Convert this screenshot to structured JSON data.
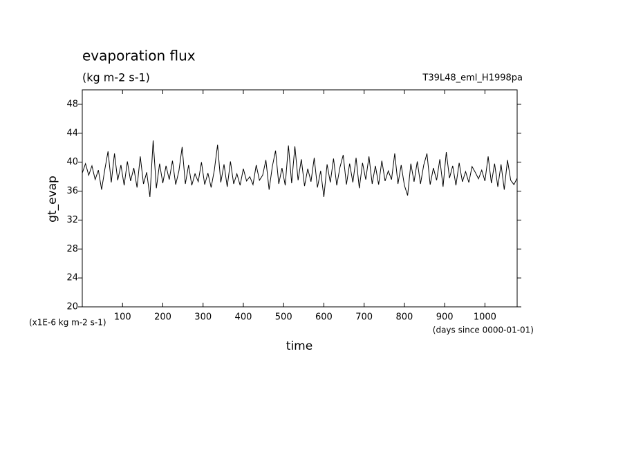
{
  "chart_data": {
    "type": "line",
    "title": "evaporation flux",
    "subtitle": "(kg m-2 s-1)",
    "run_label": "T39L48_eml_H1998pa",
    "ylabel": "gt_evap",
    "xlabel": "time",
    "y_unit_note": "(x1E-6 kg m-2 s-1)",
    "x_unit_note": "(days since 0000-01-01)",
    "xlim": [
      0,
      1080
    ],
    "xticks": [
      100,
      200,
      300,
      400,
      500,
      600,
      700,
      800,
      900,
      1000
    ],
    "ylim": [
      20,
      50
    ],
    "yticks": [
      20,
      24,
      28,
      32,
      36,
      40,
      44,
      48
    ],
    "grid": false,
    "series": [
      {
        "name": "gt_evap",
        "color": "#000000",
        "x": [
          0,
          8,
          16,
          24,
          32,
          40,
          48,
          56,
          64,
          72,
          80,
          88,
          96,
          104,
          112,
          120,
          128,
          136,
          144,
          152,
          160,
          168,
          176,
          184,
          192,
          200,
          208,
          216,
          224,
          232,
          240,
          248,
          256,
          264,
          272,
          280,
          288,
          296,
          304,
          312,
          320,
          328,
          336,
          344,
          352,
          360,
          368,
          376,
          384,
          392,
          400,
          408,
          416,
          424,
          432,
          440,
          448,
          456,
          464,
          472,
          480,
          488,
          496,
          504,
          512,
          520,
          528,
          536,
          544,
          552,
          560,
          568,
          576,
          584,
          592,
          600,
          608,
          616,
          624,
          632,
          640,
          648,
          656,
          664,
          672,
          680,
          688,
          696,
          704,
          712,
          720,
          728,
          736,
          744,
          752,
          760,
          768,
          776,
          784,
          792,
          800,
          808,
          816,
          824,
          832,
          840,
          848,
          856,
          864,
          872,
          880,
          888,
          896,
          904,
          912,
          920,
          928,
          936,
          944,
          952,
          960,
          968,
          976,
          984,
          992,
          1000,
          1008,
          1016,
          1024,
          1032,
          1040,
          1048,
          1056,
          1064,
          1072,
          1080
        ],
        "values": [
          38.5,
          39.8,
          38.2,
          39.5,
          37.6,
          38.9,
          36.2,
          39.0,
          41.5,
          37.2,
          41.2,
          37.5,
          39.6,
          36.8,
          40.1,
          37.4,
          39.2,
          36.5,
          40.8,
          37.0,
          38.6,
          35.2,
          43.0,
          36.4,
          39.8,
          37.1,
          39.5,
          37.6,
          40.2,
          36.9,
          38.8,
          42.1,
          37.0,
          39.6,
          36.8,
          38.4,
          37.3,
          40.0,
          36.9,
          38.5,
          36.5,
          38.9,
          42.4,
          37.2,
          39.7,
          36.6,
          40.1,
          37.0,
          38.4,
          36.8,
          39.1,
          37.4,
          38.0,
          36.9,
          39.6,
          37.5,
          38.2,
          40.3,
          36.2,
          39.4,
          41.6,
          37.0,
          39.2,
          36.8,
          42.3,
          37.1,
          42.2,
          37.5,
          40.4,
          36.7,
          39.1,
          37.3,
          40.6,
          36.5,
          38.8,
          35.2,
          39.7,
          37.2,
          40.5,
          36.8,
          39.3,
          41.0,
          36.9,
          39.8,
          37.2,
          40.6,
          36.4,
          39.9,
          37.6,
          40.8,
          37.0,
          39.5,
          36.9,
          40.2,
          37.4,
          38.8,
          37.6,
          41.2,
          37.0,
          39.6,
          36.8,
          35.4,
          39.8,
          37.3,
          40.1,
          37.0,
          39.6,
          41.2,
          36.9,
          39.2,
          37.5,
          40.4,
          36.6,
          41.4,
          37.8,
          39.5,
          36.8,
          39.9,
          37.3,
          38.7,
          37.2,
          39.4,
          38.6,
          37.7,
          38.9,
          37.4,
          40.8,
          37.1,
          39.8,
          36.6,
          39.7,
          36.2,
          40.3,
          37.5,
          36.9,
          37.8
        ]
      }
    ]
  }
}
